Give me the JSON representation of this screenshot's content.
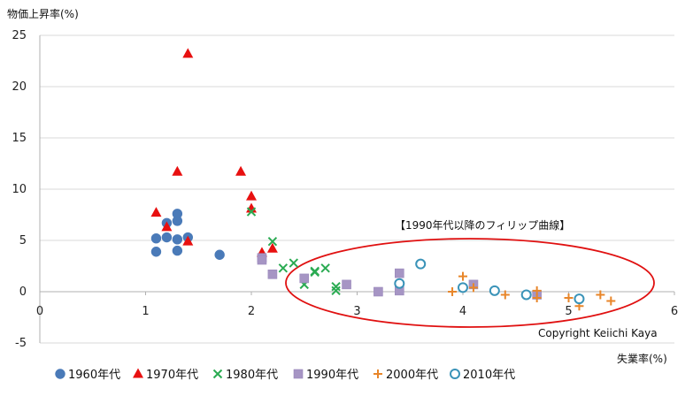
{
  "chart_data": {
    "type": "scatter",
    "ylabel": "物価上昇率(%)",
    "xlabel": "失業率(%)",
    "annotation": "【1990年代以降のフィリップ曲線】",
    "copyright": "Copyright Keiichi Kaya",
    "xlim": [
      0,
      6
    ],
    "ylim": [
      -5,
      25
    ],
    "xticks": [
      "0",
      "1",
      "2",
      "3",
      "4",
      "5",
      "6"
    ],
    "yticks": [
      "-5",
      "0",
      "5",
      "10",
      "15",
      "20",
      "25"
    ],
    "grid": "horizontal",
    "legend_position": "bottom",
    "series": [
      {
        "name": "1960年代",
        "marker": "circle",
        "color": "#4a7ab8",
        "points": [
          [
            1.1,
            5.2
          ],
          [
            1.1,
            3.9
          ],
          [
            1.2,
            6.7
          ],
          [
            1.2,
            5.3
          ],
          [
            1.3,
            7.6
          ],
          [
            1.3,
            6.9
          ],
          [
            1.3,
            5.1
          ],
          [
            1.3,
            4.0
          ],
          [
            1.4,
            5.3
          ],
          [
            1.7,
            3.6
          ]
        ]
      },
      {
        "name": "1970年代",
        "marker": "triangle",
        "color": "#e81010",
        "points": [
          [
            1.1,
            7.7
          ],
          [
            1.2,
            6.3
          ],
          [
            1.3,
            11.7
          ],
          [
            1.4,
            23.2
          ],
          [
            1.4,
            4.9
          ],
          [
            1.9,
            11.7
          ],
          [
            2.0,
            9.3
          ],
          [
            2.0,
            8.1
          ],
          [
            2.1,
            3.8
          ],
          [
            2.2,
            4.2
          ]
        ]
      },
      {
        "name": "1980年代",
        "marker": "x",
        "color": "#2aab52",
        "points": [
          [
            2.0,
            7.8
          ],
          [
            2.2,
            4.9
          ],
          [
            2.3,
            2.3
          ],
          [
            2.4,
            2.8
          ],
          [
            2.5,
            0.7
          ],
          [
            2.6,
            2.0
          ],
          [
            2.6,
            1.9
          ],
          [
            2.7,
            2.3
          ],
          [
            2.8,
            0.5
          ],
          [
            2.8,
            0.1
          ]
        ]
      },
      {
        "name": "1990年代",
        "marker": "square",
        "color": "#a695c4",
        "points": [
          [
            2.1,
            3.3
          ],
          [
            2.1,
            3.1
          ],
          [
            2.2,
            1.7
          ],
          [
            2.5,
            1.3
          ],
          [
            2.9,
            0.7
          ],
          [
            3.2,
            0.0
          ],
          [
            3.4,
            1.8
          ],
          [
            3.4,
            0.1
          ],
          [
            4.1,
            0.7
          ],
          [
            4.7,
            -0.3
          ]
        ]
      },
      {
        "name": "2000年代",
        "marker": "plus",
        "color": "#e8862a",
        "points": [
          [
            3.9,
            0.0
          ],
          [
            4.0,
            1.5
          ],
          [
            4.1,
            0.4
          ],
          [
            4.4,
            -0.3
          ],
          [
            4.7,
            0.1
          ],
          [
            4.7,
            -0.6
          ],
          [
            5.0,
            -0.6
          ],
          [
            5.1,
            -1.4
          ],
          [
            5.3,
            -0.3
          ],
          [
            5.4,
            -0.9
          ]
        ]
      },
      {
        "name": "2010年代",
        "marker": "ring",
        "color": "#3a93b8",
        "points": [
          [
            3.4,
            0.8
          ],
          [
            3.6,
            2.7
          ],
          [
            4.0,
            0.4
          ],
          [
            4.3,
            0.1
          ],
          [
            4.6,
            -0.3
          ],
          [
            5.1,
            -0.7
          ]
        ]
      }
    ]
  }
}
